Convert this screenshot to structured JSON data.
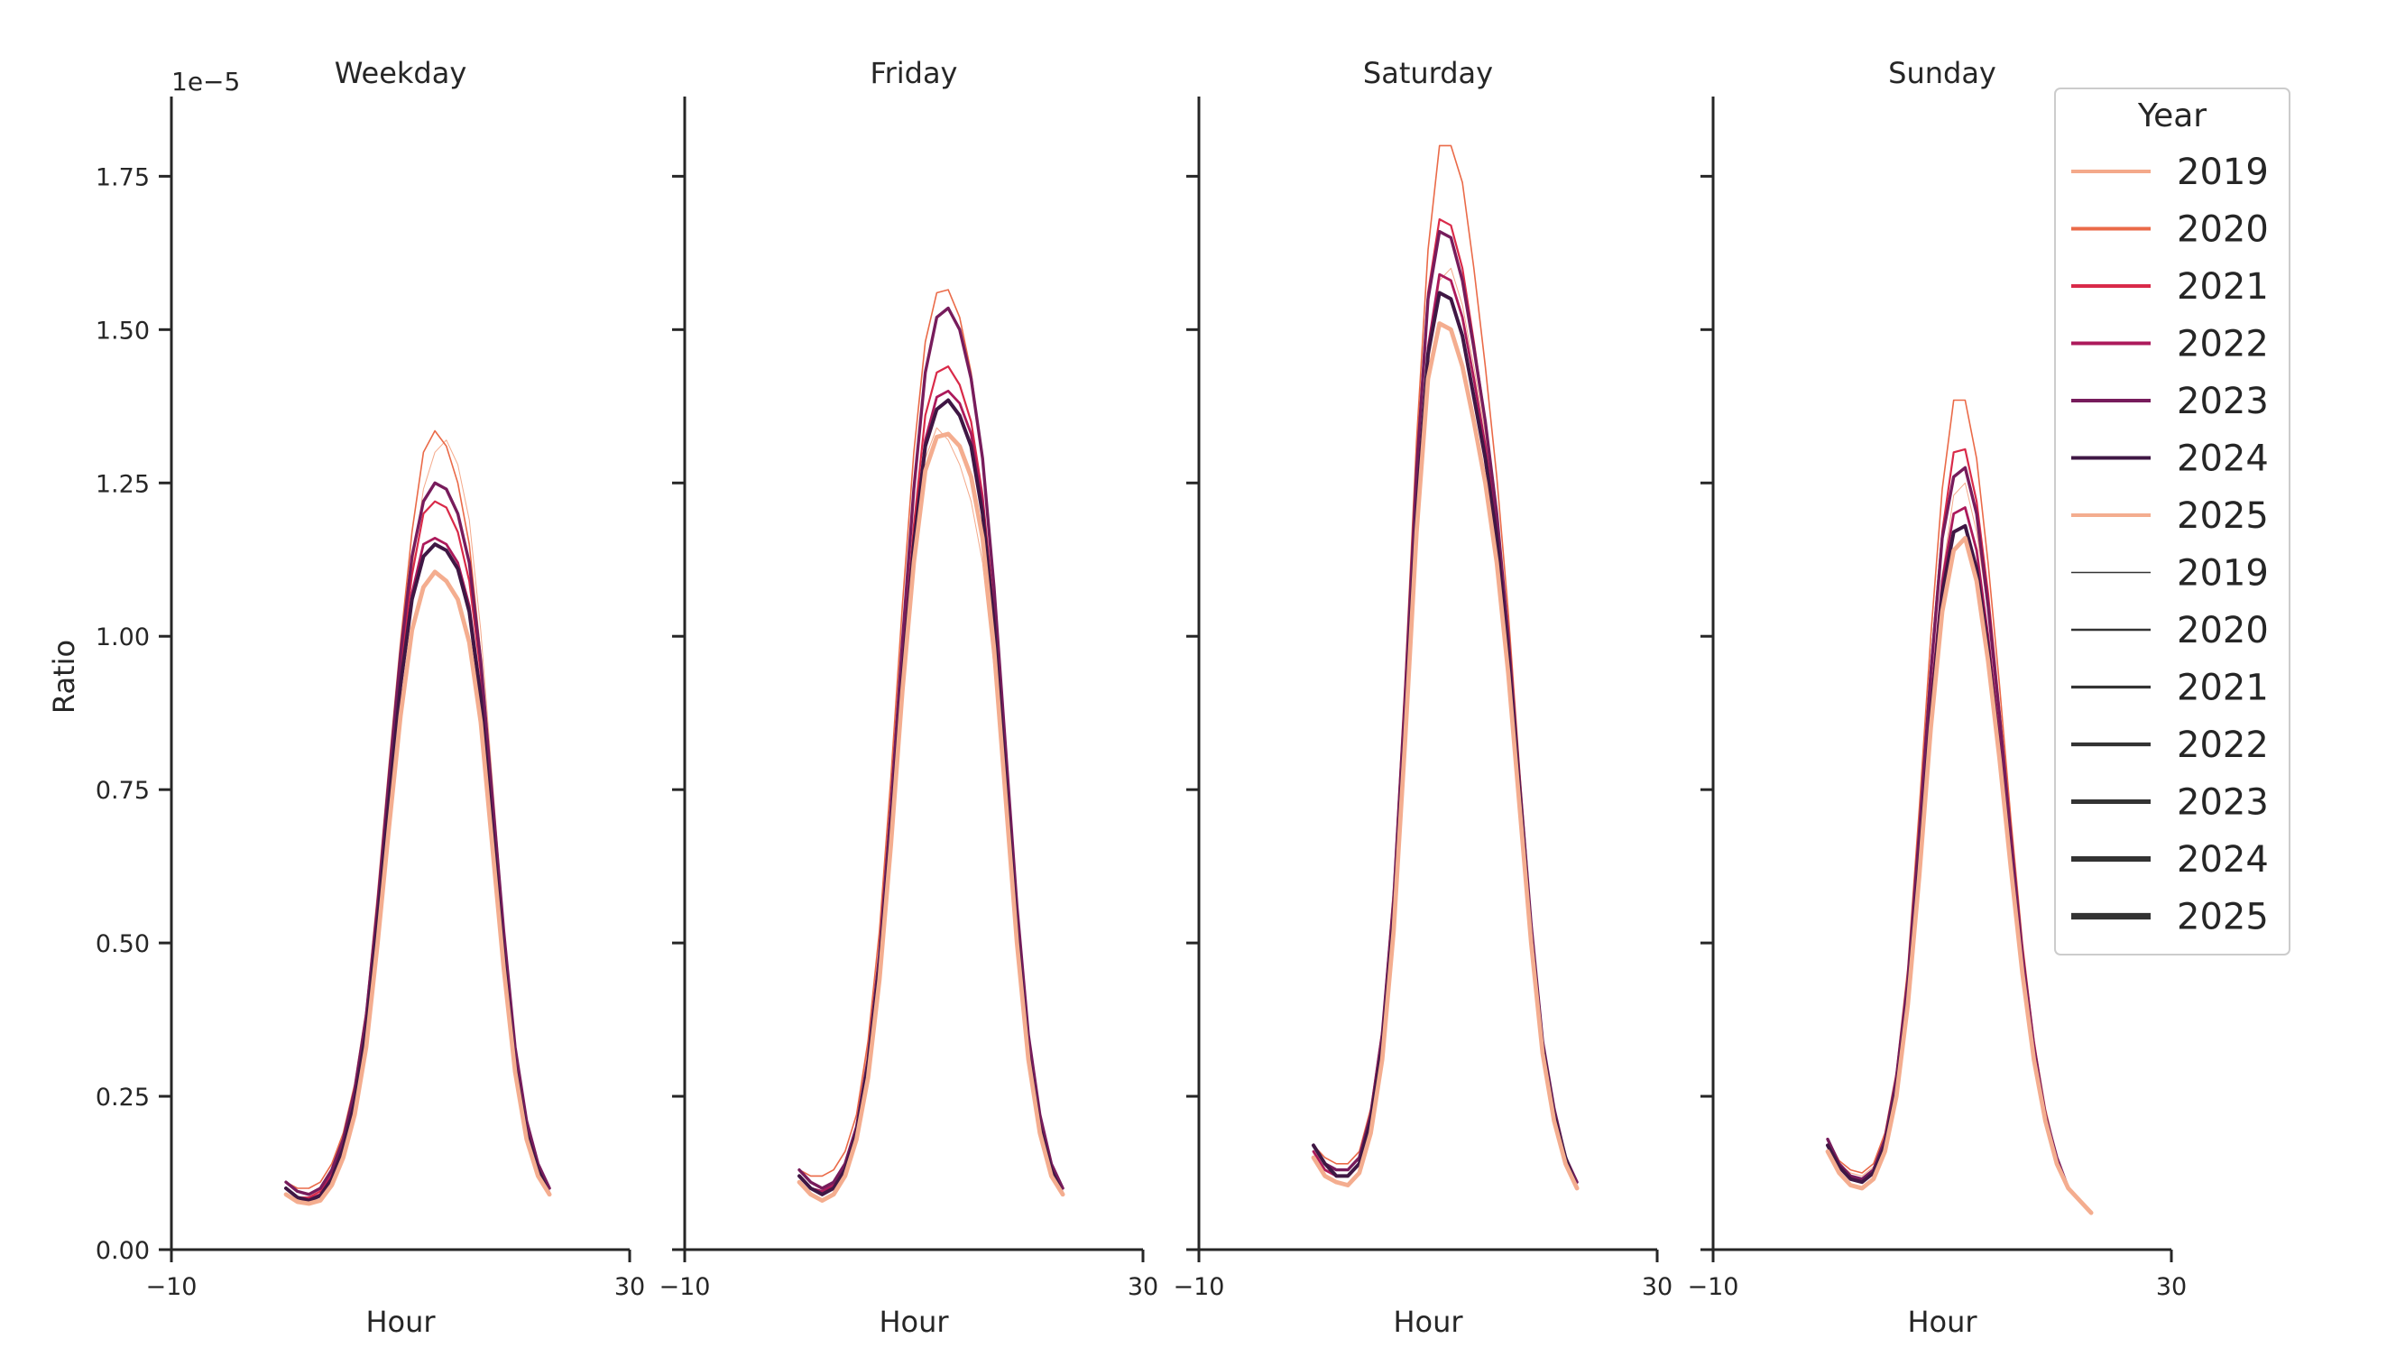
{
  "chart_data": {
    "type": "line",
    "x": [
      0,
      1,
      2,
      3,
      4,
      5,
      6,
      7,
      8,
      9,
      10,
      11,
      12,
      13,
      14,
      15,
      16,
      17,
      18,
      19,
      20,
      21,
      22,
      23
    ],
    "ylabel": "Ratio",
    "y_offset_label": "1e−5",
    "ylim": [
      0,
      1.88
    ],
    "yticks": [
      "0.00",
      "0.25",
      "0.50",
      "0.75",
      "1.00",
      "1.25",
      "1.50",
      "1.75"
    ],
    "ytick_values": [
      0,
      0.25,
      0.5,
      0.75,
      1.0,
      1.25,
      1.5,
      1.75
    ],
    "xlim": [
      -10,
      30
    ],
    "xticks": [
      "−10",
      "30"
    ],
    "xtick_values": [
      -10,
      30
    ],
    "xlabel": "Hour",
    "legend": {
      "title": "Year",
      "position": "right",
      "hue_entries": [
        "2019",
        "2020",
        "2021",
        "2022",
        "2023",
        "2024",
        "2025"
      ],
      "size_entries": [
        "2019",
        "2020",
        "2021",
        "2022",
        "2023",
        "2024",
        "2025"
      ]
    },
    "series_style": {
      "2019": {
        "color": "#f4a98a",
        "width": 1.0
      },
      "2020": {
        "color": "#ea6a48",
        "width": 1.6
      },
      "2021": {
        "color": "#d92a49",
        "width": 2.2
      },
      "2022": {
        "color": "#ac1a5b",
        "width": 2.8
      },
      "2023": {
        "color": "#771c5c",
        "width": 3.4
      },
      "2024": {
        "color": "#3f1744",
        "width": 4.0
      },
      "2025": {
        "color": "#f4ad8f",
        "width": 4.8
      }
    },
    "panels": [
      {
        "title": "Weekday",
        "series": [
          {
            "name": "2019",
            "values": [
              0.11,
              0.095,
              0.092,
              0.1,
              0.13,
              0.18,
              0.26,
              0.38,
              0.56,
              0.76,
              0.95,
              1.11,
              1.24,
              1.3,
              1.32,
              1.28,
              1.19,
              1.01,
              0.77,
              0.53,
              0.33,
              0.21,
              0.14,
              0.1
            ]
          },
          {
            "name": "2020",
            "values": [
              0.11,
              0.1,
              0.1,
              0.11,
              0.14,
              0.19,
              0.27,
              0.39,
              0.58,
              0.79,
              0.99,
              1.17,
              1.3,
              1.335,
              1.31,
              1.25,
              1.15,
              0.97,
              0.74,
              0.51,
              0.32,
              0.2,
              0.13,
              0.09
            ]
          },
          {
            "name": "2021",
            "values": [
              0.1,
              0.085,
              0.085,
              0.095,
              0.125,
              0.175,
              0.25,
              0.37,
              0.55,
              0.76,
              0.95,
              1.1,
              1.2,
              1.22,
              1.21,
              1.17,
              1.09,
              0.94,
              0.72,
              0.5,
              0.31,
              0.195,
              0.13,
              0.09
            ]
          },
          {
            "name": "2022",
            "values": [
              0.1,
              0.085,
              0.082,
              0.09,
              0.12,
              0.17,
              0.24,
              0.36,
              0.54,
              0.74,
              0.93,
              1.07,
              1.15,
              1.16,
              1.15,
              1.12,
              1.05,
              0.91,
              0.7,
              0.49,
              0.31,
              0.19,
              0.13,
              0.09
            ]
          },
          {
            "name": "2023",
            "values": [
              0.11,
              0.095,
              0.09,
              0.1,
              0.13,
              0.18,
              0.26,
              0.38,
              0.56,
              0.77,
              0.97,
              1.13,
              1.22,
              1.25,
              1.24,
              1.2,
              1.12,
              0.96,
              0.74,
              0.52,
              0.33,
              0.21,
              0.14,
              0.1
            ]
          },
          {
            "name": "2024",
            "values": [
              0.1,
              0.085,
              0.08,
              0.088,
              0.115,
              0.165,
              0.24,
              0.355,
              0.53,
              0.73,
              0.92,
              1.06,
              1.13,
              1.15,
              1.14,
              1.11,
              1.04,
              0.9,
              0.69,
              0.48,
              0.3,
              0.19,
              0.13,
              0.09
            ]
          },
          {
            "name": "2025",
            "values": [
              0.09,
              0.078,
              0.075,
              0.08,
              0.105,
              0.15,
              0.22,
              0.33,
              0.5,
              0.69,
              0.87,
              1.01,
              1.08,
              1.105,
              1.09,
              1.06,
              0.99,
              0.86,
              0.66,
              0.46,
              0.29,
              0.18,
              0.12,
              0.09
            ]
          }
        ]
      },
      {
        "title": "Friday",
        "series": [
          {
            "name": "2019",
            "values": [
              0.13,
              0.12,
              0.12,
              0.13,
              0.16,
              0.22,
              0.33,
              0.49,
              0.71,
              0.95,
              1.15,
              1.29,
              1.34,
              1.32,
              1.28,
              1.22,
              1.12,
              0.95,
              0.73,
              0.5,
              0.31,
              0.19,
              0.12,
              0.09
            ]
          },
          {
            "name": "2020",
            "values": [
              0.13,
              0.12,
              0.12,
              0.13,
              0.16,
              0.22,
              0.34,
              0.52,
              0.77,
              1.05,
              1.3,
              1.48,
              1.56,
              1.565,
              1.52,
              1.43,
              1.29,
              1.07,
              0.81,
              0.55,
              0.34,
              0.21,
              0.13,
              0.09
            ]
          },
          {
            "name": "2021",
            "values": [
              0.13,
              0.11,
              0.1,
              0.11,
              0.14,
              0.2,
              0.31,
              0.47,
              0.7,
              0.95,
              1.18,
              1.36,
              1.43,
              1.44,
              1.41,
              1.35,
              1.23,
              1.04,
              0.79,
              0.54,
              0.33,
              0.21,
              0.13,
              0.09
            ]
          },
          {
            "name": "2022",
            "values": [
              0.12,
              0.1,
              0.095,
              0.105,
              0.135,
              0.195,
              0.3,
              0.46,
              0.68,
              0.93,
              1.15,
              1.32,
              1.39,
              1.4,
              1.38,
              1.33,
              1.22,
              1.03,
              0.78,
              0.53,
              0.33,
              0.2,
              0.13,
              0.09
            ]
          },
          {
            "name": "2023",
            "values": [
              0.13,
              0.11,
              0.1,
              0.11,
              0.14,
              0.2,
              0.31,
              0.48,
              0.72,
              0.99,
              1.24,
              1.43,
              1.52,
              1.535,
              1.5,
              1.42,
              1.29,
              1.08,
              0.82,
              0.56,
              0.35,
              0.22,
              0.14,
              0.1
            ]
          },
          {
            "name": "2024",
            "values": [
              0.12,
              0.1,
              0.09,
              0.1,
              0.13,
              0.19,
              0.3,
              0.46,
              0.68,
              0.93,
              1.15,
              1.31,
              1.37,
              1.385,
              1.36,
              1.31,
              1.2,
              1.02,
              0.77,
              0.52,
              0.32,
              0.2,
              0.13,
              0.09
            ]
          },
          {
            "name": "2025",
            "values": [
              0.11,
              0.09,
              0.08,
              0.09,
              0.12,
              0.18,
              0.28,
              0.44,
              0.66,
              0.91,
              1.12,
              1.27,
              1.325,
              1.33,
              1.31,
              1.26,
              1.16,
              0.98,
              0.74,
              0.5,
              0.31,
              0.19,
              0.12,
              0.09
            ]
          }
        ]
      },
      {
        "title": "Saturday",
        "series": [
          {
            "name": "2019",
            "values": [
              0.16,
              0.14,
              0.13,
              0.13,
              0.15,
              0.21,
              0.33,
              0.54,
              0.84,
              1.17,
              1.44,
              1.58,
              1.6,
              1.54,
              1.44,
              1.33,
              1.18,
              0.98,
              0.74,
              0.51,
              0.32,
              0.21,
              0.14,
              0.1
            ]
          },
          {
            "name": "2020",
            "values": [
              0.17,
              0.15,
              0.14,
              0.14,
              0.16,
              0.23,
              0.36,
              0.59,
              0.93,
              1.32,
              1.63,
              1.8,
              1.8,
              1.74,
              1.6,
              1.44,
              1.26,
              1.04,
              0.78,
              0.54,
              0.34,
              0.22,
              0.15,
              0.11
            ]
          },
          {
            "name": "2021",
            "values": [
              0.17,
              0.14,
              0.13,
              0.13,
              0.15,
              0.22,
              0.35,
              0.57,
              0.9,
              1.28,
              1.56,
              1.68,
              1.67,
              1.6,
              1.48,
              1.35,
              1.19,
              0.99,
              0.75,
              0.52,
              0.33,
              0.22,
              0.15,
              0.1
            ]
          },
          {
            "name": "2022",
            "values": [
              0.16,
              0.13,
              0.12,
              0.12,
              0.14,
              0.21,
              0.33,
              0.54,
              0.85,
              1.2,
              1.47,
              1.59,
              1.58,
              1.52,
              1.42,
              1.31,
              1.17,
              0.98,
              0.74,
              0.51,
              0.33,
              0.22,
              0.15,
              0.1
            ]
          },
          {
            "name": "2023",
            "values": [
              0.17,
              0.14,
              0.13,
              0.13,
              0.15,
              0.22,
              0.35,
              0.57,
              0.9,
              1.27,
              1.55,
              1.66,
              1.65,
              1.58,
              1.47,
              1.35,
              1.2,
              1.0,
              0.76,
              0.53,
              0.34,
              0.23,
              0.15,
              0.11
            ]
          },
          {
            "name": "2024",
            "values": [
              0.17,
              0.14,
              0.12,
              0.12,
              0.14,
              0.21,
              0.33,
              0.54,
              0.85,
              1.2,
              1.46,
              1.56,
              1.55,
              1.49,
              1.39,
              1.29,
              1.16,
              0.97,
              0.74,
              0.51,
              0.33,
              0.22,
              0.15,
              0.1
            ]
          },
          {
            "name": "2025",
            "values": [
              0.15,
              0.12,
              0.11,
              0.105,
              0.125,
              0.19,
              0.31,
              0.52,
              0.83,
              1.17,
              1.42,
              1.51,
              1.5,
              1.44,
              1.35,
              1.25,
              1.12,
              0.94,
              0.72,
              0.5,
              0.32,
              0.21,
              0.14,
              0.1
            ]
          }
        ]
      },
      {
        "title": "Sunday",
        "series": [
          {
            "name": "2019",
            "values": [
              0.18,
              0.14,
              0.125,
              0.12,
              0.135,
              0.18,
              0.27,
              0.42,
              0.64,
              0.89,
              1.1,
              1.23,
              1.25,
              1.17,
              1.04,
              0.87,
              0.68,
              0.49,
              0.34,
              0.22,
              0.15,
              0.1,
              0.08,
              0.06
            ]
          },
          {
            "name": "2020",
            "values": [
              0.18,
              0.145,
              0.13,
              0.125,
              0.14,
              0.19,
              0.29,
              0.46,
              0.72,
              1.0,
              1.24,
              1.385,
              1.385,
              1.29,
              1.12,
              0.92,
              0.7,
              0.5,
              0.34,
              0.23,
              0.15,
              0.1,
              0.08,
              0.06
            ]
          },
          {
            "name": "2021",
            "values": [
              0.17,
              0.14,
              0.12,
              0.115,
              0.13,
              0.18,
              0.28,
              0.44,
              0.68,
              0.95,
              1.17,
              1.3,
              1.305,
              1.22,
              1.07,
              0.88,
              0.68,
              0.49,
              0.34,
              0.22,
              0.15,
              0.1,
              0.08,
              0.06
            ]
          },
          {
            "name": "2022",
            "values": [
              0.17,
              0.135,
              0.12,
              0.11,
              0.125,
              0.175,
              0.27,
              0.42,
              0.64,
              0.89,
              1.09,
              1.2,
              1.21,
              1.14,
              1.0,
              0.83,
              0.64,
              0.46,
              0.32,
              0.21,
              0.14,
              0.1,
              0.08,
              0.06
            ]
          },
          {
            "name": "2023",
            "values": [
              0.18,
              0.14,
              0.12,
              0.115,
              0.13,
              0.18,
              0.28,
              0.44,
              0.68,
              0.94,
              1.16,
              1.26,
              1.275,
              1.2,
              1.05,
              0.87,
              0.67,
              0.48,
              0.33,
              0.22,
              0.15,
              0.1,
              0.08,
              0.06
            ]
          },
          {
            "name": "2024",
            "values": [
              0.17,
              0.135,
              0.115,
              0.11,
              0.125,
              0.17,
              0.26,
              0.41,
              0.63,
              0.87,
              1.07,
              1.17,
              1.18,
              1.11,
              0.98,
              0.81,
              0.63,
              0.45,
              0.31,
              0.21,
              0.14,
              0.1,
              0.08,
              0.06
            ]
          },
          {
            "name": "2025",
            "values": [
              0.16,
              0.125,
              0.105,
              0.1,
              0.115,
              0.16,
              0.25,
              0.4,
              0.61,
              0.85,
              1.04,
              1.14,
              1.16,
              1.09,
              0.96,
              0.8,
              0.62,
              0.45,
              0.31,
              0.21,
              0.14,
              0.1,
              0.08,
              0.06
            ]
          }
        ]
      }
    ]
  }
}
